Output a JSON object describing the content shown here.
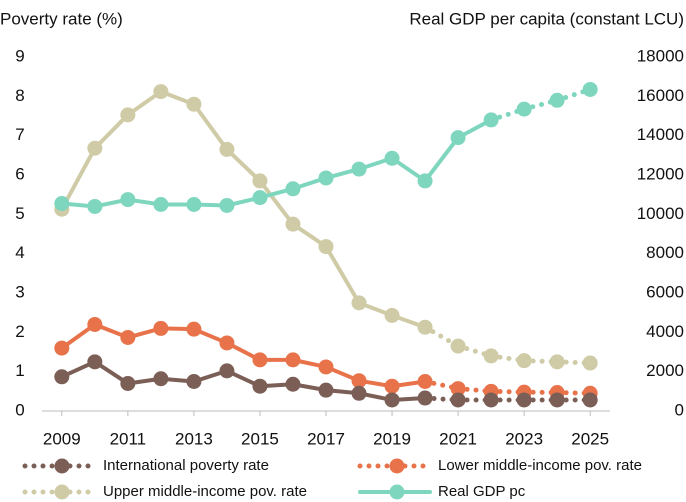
{
  "chart_data": {
    "type": "line",
    "y_label": "Poverty rate (%)",
    "y2_label": "Real GDP per capita (constant LCU)",
    "x": [
      2009,
      2010,
      2011,
      2012,
      2013,
      2014,
      2015,
      2016,
      2017,
      2018,
      2019,
      2020,
      2021,
      2022,
      2023,
      2024,
      2025
    ],
    "xlim": [
      2008.4,
      2025.6
    ],
    "xticks": [
      2009,
      2011,
      2013,
      2015,
      2017,
      2019,
      2021,
      2023,
      2025
    ],
    "ylim": [
      0,
      9
    ],
    "yticks": [
      0,
      1,
      2,
      3,
      4,
      5,
      6,
      7,
      8,
      9
    ],
    "y2lim": [
      0,
      18000
    ],
    "y2ticks": [
      0,
      2000,
      4000,
      6000,
      8000,
      10000,
      12000,
      14000,
      16000,
      18000
    ],
    "series": [
      {
        "name": "International poverty rate",
        "color": "#7b5f57",
        "projection_from": 2020,
        "values": [
          0.87,
          1.25,
          0.7,
          0.82,
          0.75,
          1.02,
          0.63,
          0.68,
          0.53,
          0.45,
          0.28,
          0.33,
          0.28,
          0.28,
          0.28,
          0.28,
          0.28
        ]
      },
      {
        "name": "Lower middle-income pov. rate",
        "color": "#e8734a",
        "projection_from": 2020,
        "values": [
          1.6,
          2.2,
          1.87,
          2.1,
          2.08,
          1.73,
          1.3,
          1.3,
          1.12,
          0.77,
          0.63,
          0.75,
          0.57,
          0.5,
          0.48,
          0.47,
          0.45
        ]
      },
      {
        "name": "Upper middle-income pov. rate",
        "color": "#cfcba6",
        "projection_from": 2020,
        "values": [
          5.13,
          6.68,
          7.53,
          8.12,
          7.8,
          6.65,
          5.85,
          4.75,
          4.18,
          2.75,
          2.43,
          2.13,
          1.65,
          1.4,
          1.28,
          1.25,
          1.22
        ]
      },
      {
        "name": "Real GDP pc",
        "color": "#7fd6be",
        "axis": "y2",
        "projection_from": 2022,
        "values": [
          10550,
          10400,
          10750,
          10500,
          10500,
          10450,
          10850,
          11300,
          11850,
          12300,
          12850,
          11700,
          13900,
          14800,
          15350,
          15800,
          16350
        ]
      }
    ]
  }
}
